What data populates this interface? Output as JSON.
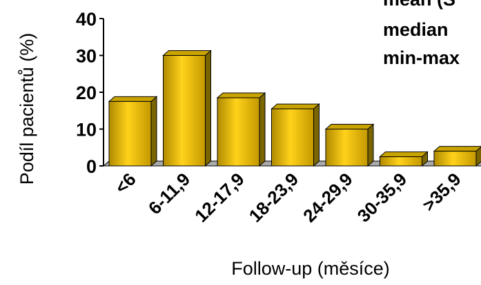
{
  "chart_data": {
    "type": "bar",
    "style": "3d",
    "categories": [
      "<6",
      "6-11,9",
      "12-17,9",
      "18-23,9",
      "24-29,9",
      "30-35,9",
      ">35,9"
    ],
    "values": [
      17.5,
      30,
      18.5,
      15.5,
      10,
      2.5,
      4
    ],
    "ylim": [
      0,
      40
    ],
    "yticks": [
      0,
      10,
      20,
      30,
      40
    ],
    "xlabel": "Follow-up (měsíce)",
    "ylabel": "Podíl pacientů (%)",
    "stats_labels": [
      "mean (S",
      "median",
      "min-max"
    ],
    "colors": {
      "bar_front": "#f0b800",
      "bar_top": "#c9a300",
      "bar_side": "#7a6500",
      "floor": "#a9a9a9"
    }
  }
}
